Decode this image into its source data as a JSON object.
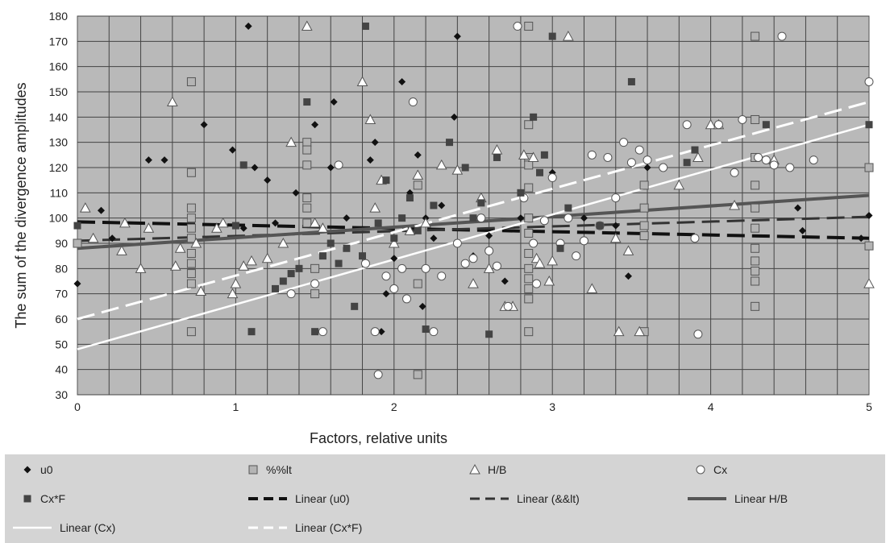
{
  "chart_data": {
    "type": "scatter",
    "title": "",
    "xlabel": "Factors, relative units",
    "ylabel": "The sum of the divergence amplitudes",
    "xlim": [
      0,
      5
    ],
    "ylim": [
      30,
      180
    ],
    "xticks": [
      0,
      1,
      2,
      3,
      4,
      5
    ],
    "yticks": [
      30,
      40,
      50,
      60,
      70,
      80,
      90,
      100,
      110,
      120,
      130,
      140,
      150,
      160,
      170,
      180
    ],
    "grid": true,
    "legend_position": "bottom",
    "series": [
      {
        "name": "u0",
        "marker": "diamond",
        "color": "#111111",
        "points": [
          [
            0,
            74
          ],
          [
            0.15,
            103
          ],
          [
            0.22,
            92
          ],
          [
            0.45,
            123
          ],
          [
            0.55,
            123
          ],
          [
            0.8,
            137
          ],
          [
            0.98,
            127
          ],
          [
            1.05,
            96
          ],
          [
            1.08,
            176
          ],
          [
            1.12,
            120
          ],
          [
            1.2,
            115
          ],
          [
            1.25,
            98
          ],
          [
            1.38,
            110
          ],
          [
            1.45,
            121
          ],
          [
            1.5,
            137
          ],
          [
            1.6,
            120
          ],
          [
            1.62,
            146
          ],
          [
            1.7,
            100
          ],
          [
            1.85,
            123
          ],
          [
            1.88,
            130
          ],
          [
            1.92,
            55
          ],
          [
            1.95,
            70
          ],
          [
            2.0,
            84
          ],
          [
            2.05,
            154
          ],
          [
            2.1,
            110
          ],
          [
            2.15,
            125
          ],
          [
            2.18,
            65
          ],
          [
            2.2,
            100
          ],
          [
            2.25,
            92
          ],
          [
            2.3,
            105
          ],
          [
            2.38,
            140
          ],
          [
            2.4,
            172
          ],
          [
            2.5,
            85
          ],
          [
            2.6,
            93
          ],
          [
            2.7,
            75
          ],
          [
            2.8,
            100
          ],
          [
            3.0,
            118
          ],
          [
            3.2,
            100
          ],
          [
            3.4,
            97
          ],
          [
            3.48,
            77
          ],
          [
            3.6,
            120
          ],
          [
            4.55,
            104
          ],
          [
            4.58,
            95
          ],
          [
            4.95,
            92
          ],
          [
            5.0,
            101
          ]
        ]
      },
      {
        "name": "%%lt",
        "marker": "square",
        "color": "#b4b4b4",
        "points": [
          [
            0,
            90
          ],
          [
            0.72,
            154
          ],
          [
            0.72,
            118
          ],
          [
            0.72,
            104
          ],
          [
            0.72,
            100
          ],
          [
            0.72,
            96
          ],
          [
            0.72,
            92
          ],
          [
            0.72,
            86
          ],
          [
            0.72,
            82
          ],
          [
            0.72,
            78
          ],
          [
            0.72,
            74
          ],
          [
            0.72,
            55
          ],
          [
            1.45,
            130
          ],
          [
            1.45,
            127
          ],
          [
            1.45,
            121
          ],
          [
            1.45,
            108
          ],
          [
            1.45,
            104
          ],
          [
            1.45,
            98
          ],
          [
            1.5,
            80
          ],
          [
            1.5,
            70
          ],
          [
            2.15,
            38
          ],
          [
            2.15,
            113
          ],
          [
            2.15,
            74
          ],
          [
            2.85,
            176
          ],
          [
            2.85,
            137
          ],
          [
            2.85,
            124
          ],
          [
            2.85,
            121
          ],
          [
            2.85,
            112
          ],
          [
            2.85,
            100
          ],
          [
            2.85,
            94
          ],
          [
            2.85,
            86
          ],
          [
            2.85,
            80
          ],
          [
            2.85,
            76
          ],
          [
            2.85,
            72
          ],
          [
            2.85,
            68
          ],
          [
            2.85,
            55
          ],
          [
            3.58,
            113
          ],
          [
            3.58,
            104
          ],
          [
            3.58,
            97
          ],
          [
            3.58,
            93
          ],
          [
            3.58,
            55
          ],
          [
            4.28,
            172
          ],
          [
            4.28,
            139
          ],
          [
            4.28,
            124
          ],
          [
            4.28,
            113
          ],
          [
            4.28,
            104
          ],
          [
            4.28,
            96
          ],
          [
            4.28,
            88
          ],
          [
            4.28,
            83
          ],
          [
            4.28,
            79
          ],
          [
            4.28,
            75
          ],
          [
            4.28,
            65
          ],
          [
            5.0,
            120
          ],
          [
            5.0,
            89
          ]
        ]
      },
      {
        "name": "H/B",
        "marker": "triangle",
        "color": "#ffffff",
        "points": [
          [
            0.05,
            104
          ],
          [
            0.1,
            92
          ],
          [
            0.28,
            87
          ],
          [
            0.3,
            98
          ],
          [
            0.4,
            80
          ],
          [
            0.45,
            96
          ],
          [
            0.6,
            146
          ],
          [
            0.62,
            81
          ],
          [
            0.65,
            88
          ],
          [
            0.75,
            90
          ],
          [
            0.78,
            71
          ],
          [
            0.88,
            96
          ],
          [
            0.92,
            98
          ],
          [
            0.98,
            70
          ],
          [
            1.0,
            74
          ],
          [
            1.05,
            81
          ],
          [
            1.1,
            83
          ],
          [
            1.2,
            84
          ],
          [
            1.3,
            90
          ],
          [
            1.35,
            130
          ],
          [
            1.45,
            176
          ],
          [
            1.5,
            98
          ],
          [
            1.55,
            96
          ],
          [
            1.8,
            154
          ],
          [
            1.85,
            139
          ],
          [
            1.88,
            104
          ],
          [
            1.92,
            115
          ],
          [
            2.0,
            90
          ],
          [
            2.1,
            95
          ],
          [
            2.15,
            117
          ],
          [
            2.2,
            98
          ],
          [
            2.3,
            121
          ],
          [
            2.4,
            119
          ],
          [
            2.5,
            74
          ],
          [
            2.55,
            108
          ],
          [
            2.6,
            80
          ],
          [
            2.65,
            127
          ],
          [
            2.7,
            65
          ],
          [
            2.75,
            65
          ],
          [
            2.82,
            125
          ],
          [
            2.88,
            124
          ],
          [
            2.9,
            84
          ],
          [
            2.92,
            82
          ],
          [
            2.98,
            75
          ],
          [
            3.0,
            83
          ],
          [
            3.1,
            172
          ],
          [
            3.25,
            72
          ],
          [
            3.4,
            92
          ],
          [
            3.42,
            55
          ],
          [
            3.48,
            87
          ],
          [
            3.55,
            55
          ],
          [
            3.8,
            113
          ],
          [
            3.92,
            124
          ],
          [
            4.0,
            137
          ],
          [
            4.05,
            137
          ],
          [
            4.15,
            105
          ],
          [
            4.4,
            123
          ],
          [
            5.0,
            74
          ]
        ]
      },
      {
        "name": "Cx",
        "marker": "circle",
        "color": "#ffffff",
        "points": [
          [
            1.35,
            70
          ],
          [
            1.5,
            74
          ],
          [
            1.55,
            55
          ],
          [
            1.65,
            121
          ],
          [
            1.82,
            82
          ],
          [
            1.88,
            55
          ],
          [
            1.9,
            38
          ],
          [
            1.95,
            77
          ],
          [
            2.0,
            72
          ],
          [
            2.05,
            80
          ],
          [
            2.08,
            68
          ],
          [
            2.12,
            146
          ],
          [
            2.2,
            80
          ],
          [
            2.25,
            55
          ],
          [
            2.3,
            77
          ],
          [
            2.4,
            90
          ],
          [
            2.45,
            82
          ],
          [
            2.5,
            84
          ],
          [
            2.55,
            100
          ],
          [
            2.6,
            87
          ],
          [
            2.65,
            81
          ],
          [
            2.72,
            65
          ],
          [
            2.78,
            176
          ],
          [
            2.82,
            108
          ],
          [
            2.88,
            90
          ],
          [
            2.9,
            74
          ],
          [
            2.95,
            99
          ],
          [
            3.0,
            116
          ],
          [
            3.05,
            90
          ],
          [
            3.1,
            100
          ],
          [
            3.15,
            85
          ],
          [
            3.2,
            91
          ],
          [
            3.25,
            125
          ],
          [
            3.3,
            97
          ],
          [
            3.35,
            124
          ],
          [
            3.4,
            108
          ],
          [
            3.45,
            130
          ],
          [
            3.5,
            122
          ],
          [
            3.55,
            127
          ],
          [
            3.6,
            123
          ],
          [
            3.7,
            120
          ],
          [
            3.85,
            137
          ],
          [
            3.9,
            92
          ],
          [
            3.92,
            54
          ],
          [
            4.05,
            137
          ],
          [
            4.15,
            118
          ],
          [
            4.2,
            139
          ],
          [
            4.3,
            124
          ],
          [
            4.35,
            123
          ],
          [
            4.4,
            121
          ],
          [
            4.45,
            172
          ],
          [
            4.5,
            120
          ],
          [
            4.65,
            123
          ],
          [
            5.0,
            154
          ]
        ]
      },
      {
        "name": "Cx*F",
        "marker": "filled-square",
        "color": "#444444",
        "points": [
          [
            0,
            97
          ],
          [
            1.0,
            97
          ],
          [
            1.05,
            121
          ],
          [
            1.1,
            55
          ],
          [
            1.25,
            72
          ],
          [
            1.3,
            75
          ],
          [
            1.35,
            78
          ],
          [
            1.4,
            80
          ],
          [
            1.45,
            146
          ],
          [
            1.5,
            55
          ],
          [
            1.55,
            85
          ],
          [
            1.6,
            90
          ],
          [
            1.65,
            82
          ],
          [
            1.7,
            88
          ],
          [
            1.75,
            65
          ],
          [
            1.8,
            85
          ],
          [
            1.82,
            176
          ],
          [
            1.9,
            98
          ],
          [
            1.95,
            115
          ],
          [
            2.0,
            92
          ],
          [
            2.05,
            100
          ],
          [
            2.1,
            108
          ],
          [
            2.15,
            95
          ],
          [
            2.2,
            56
          ],
          [
            2.25,
            105
          ],
          [
            2.35,
            130
          ],
          [
            2.45,
            120
          ],
          [
            2.5,
            100
          ],
          [
            2.55,
            106
          ],
          [
            2.6,
            54
          ],
          [
            2.65,
            124
          ],
          [
            2.8,
            110
          ],
          [
            2.88,
            140
          ],
          [
            2.92,
            118
          ],
          [
            2.95,
            125
          ],
          [
            3.0,
            172
          ],
          [
            3.05,
            88
          ],
          [
            3.1,
            104
          ],
          [
            3.3,
            97
          ],
          [
            3.5,
            154
          ],
          [
            3.85,
            122
          ],
          [
            3.9,
            127
          ],
          [
            4.35,
            137
          ],
          [
            5.0,
            137
          ]
        ]
      }
    ],
    "trendlines": [
      {
        "name": "Linear (u0)",
        "style": "dashed",
        "color": "#111111",
        "width": 4,
        "from": [
          0,
          98.5
        ],
        "to": [
          5,
          92
        ]
      },
      {
        "name": "Linear (&&lt)",
        "style": "dashed",
        "color": "#333333",
        "width": 3,
        "from": [
          0,
          91
        ],
        "to": [
          5,
          100.5
        ]
      },
      {
        "name": "Linear H/B",
        "style": "solid",
        "color": "#555555",
        "width": 4,
        "from": [
          0,
          88
        ],
        "to": [
          5,
          109
        ]
      },
      {
        "name": "Linear (Cx)",
        "style": "solid",
        "color": "#ffffff",
        "width": 2.5,
        "from": [
          0,
          48
        ],
        "to": [
          5,
          137
        ]
      },
      {
        "name": "Linear (Cx*F)",
        "style": "dashed",
        "color": "#ffffff",
        "width": 3,
        "from": [
          0,
          60
        ],
        "to": [
          5,
          146
        ]
      }
    ]
  }
}
